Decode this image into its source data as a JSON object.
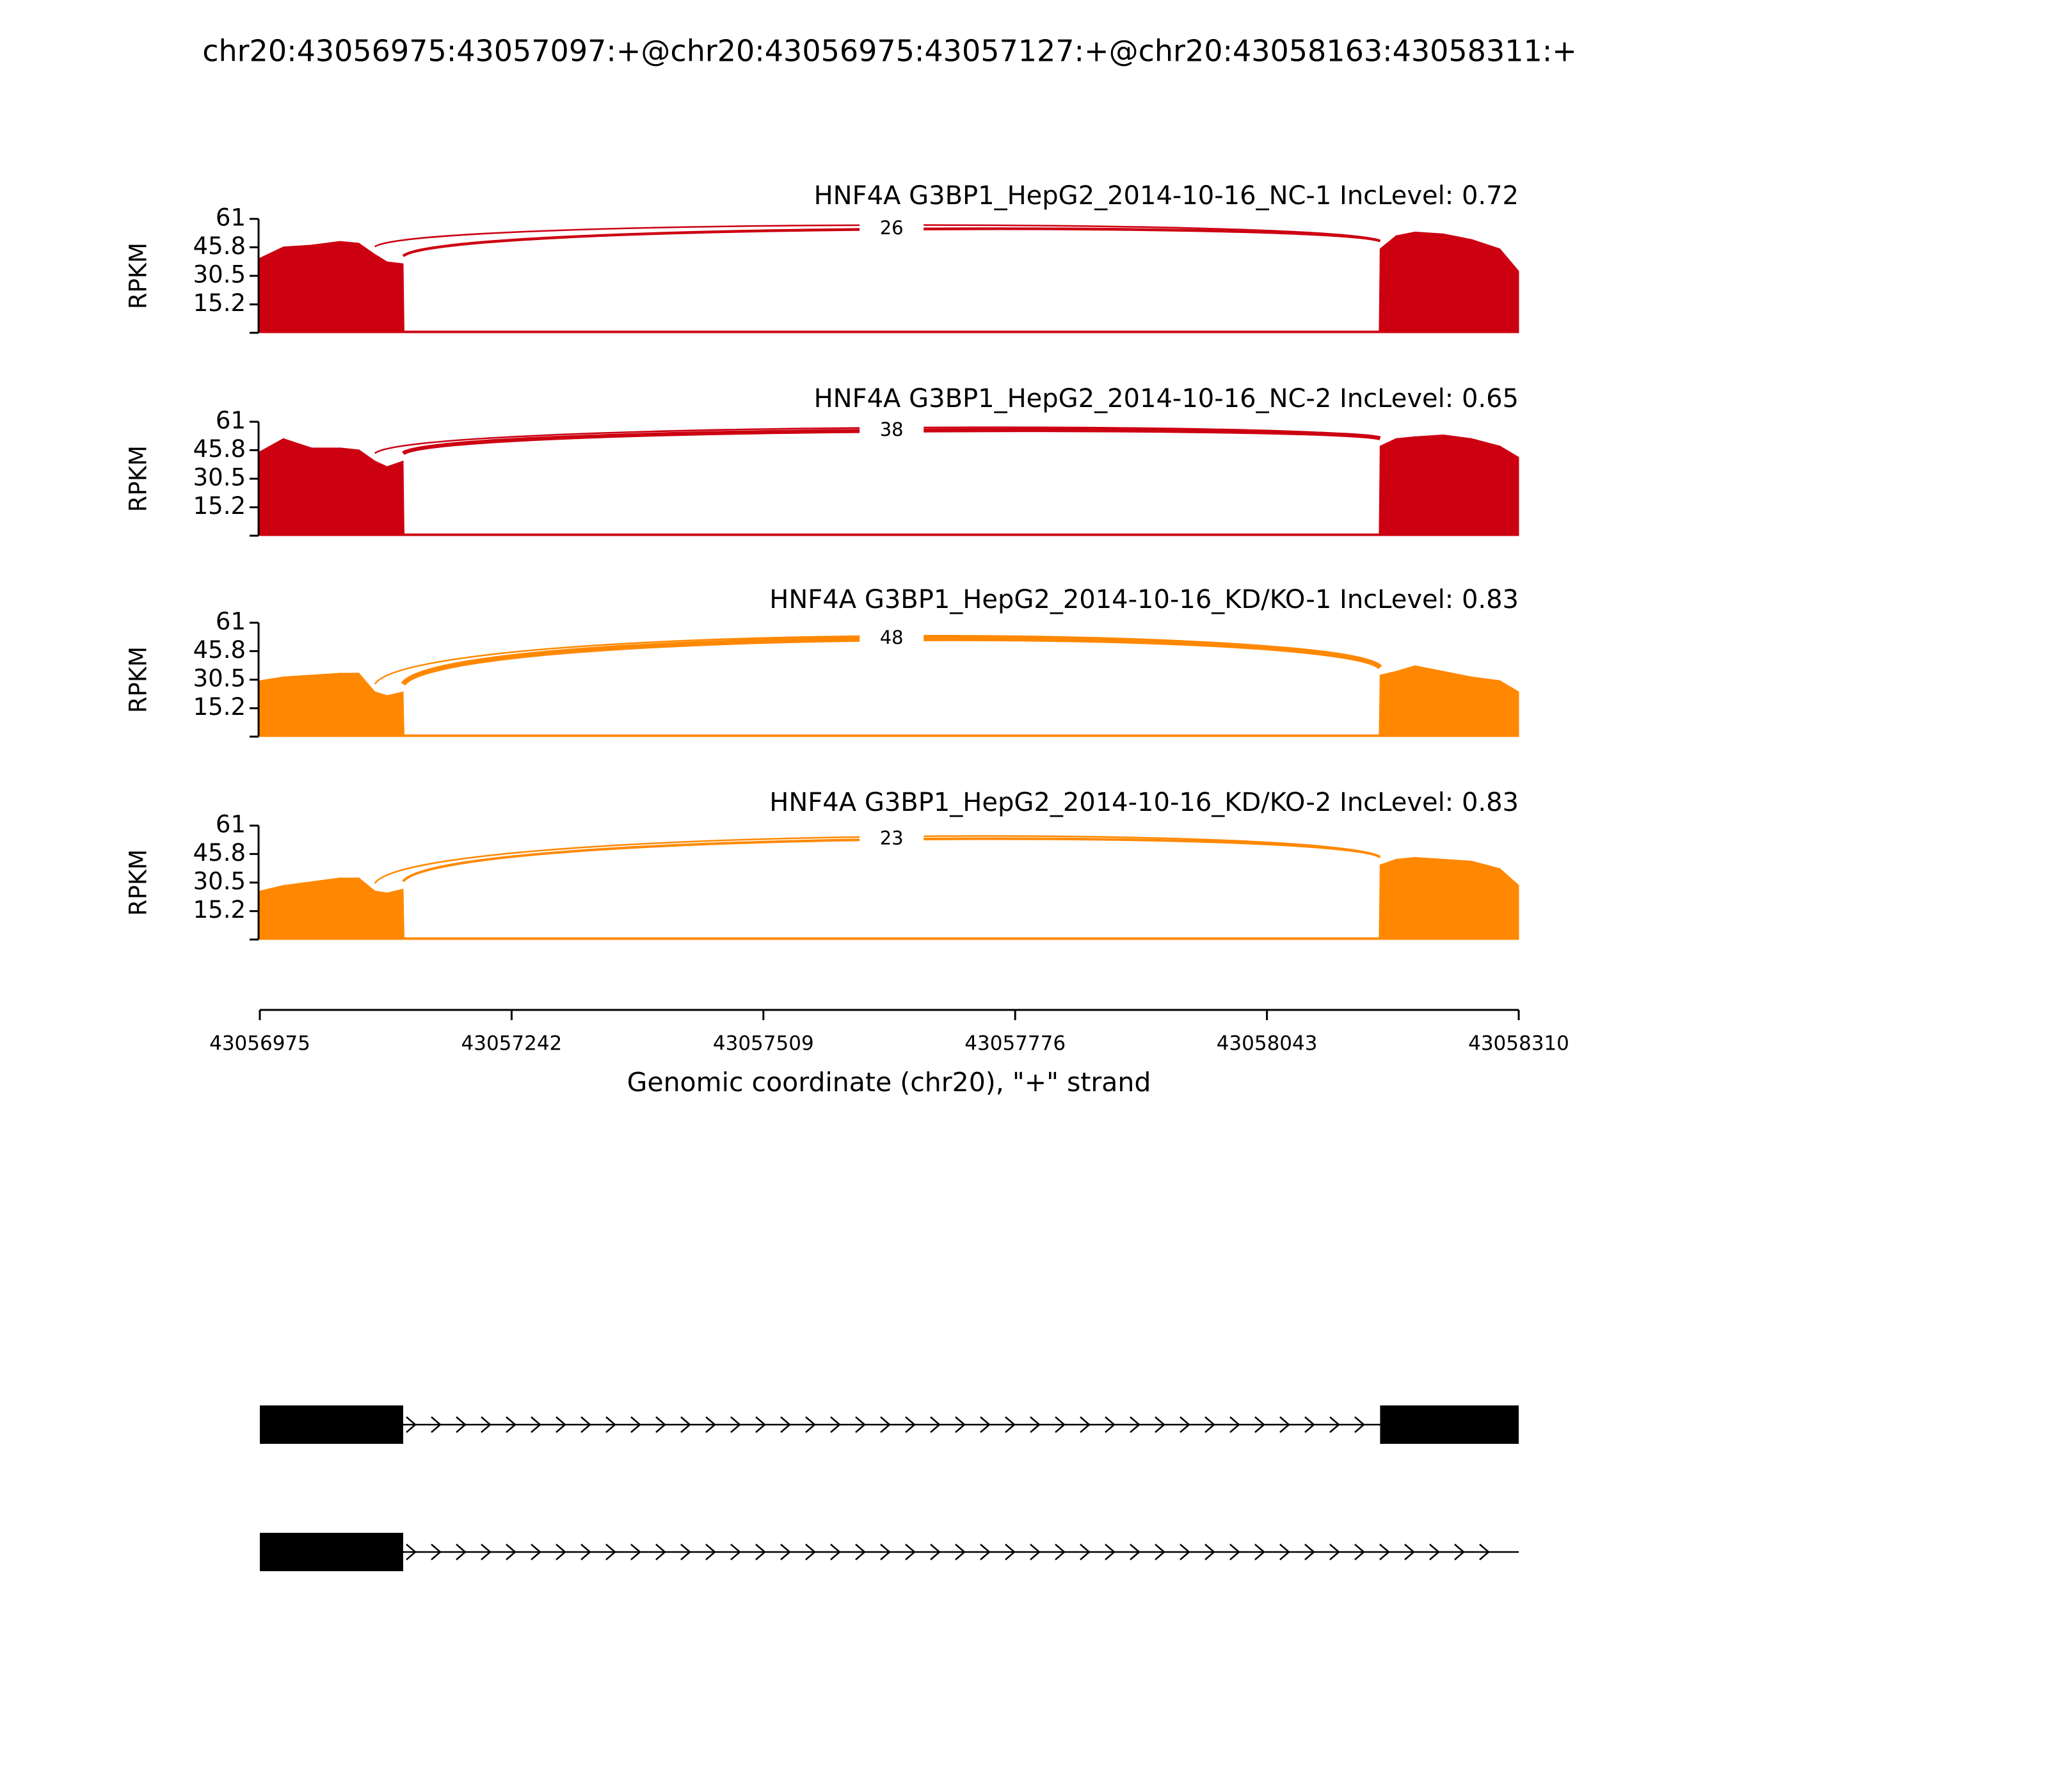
{
  "title": "chr20:43056975:43057097:+@chr20:43056975:43057127:+@chr20:43058163:43058311:+",
  "xlabel": "Genomic coordinate (chr20), \"+\" strand",
  "xlim": [
    43056975,
    43058310
  ],
  "xticks": [
    43056975,
    43057242,
    43057509,
    43057776,
    43058043,
    43058310
  ],
  "chart_data": [
    {
      "type": "area",
      "title": "HNF4A G3BP1_HepG2_2014-10-16_NC-1 IncLevel: 0.72",
      "color": "#cc0011",
      "ylabel": "RPKM",
      "ylim": [
        0,
        61
      ],
      "yticks": [
        15.2,
        30.5,
        45.8,
        61
      ],
      "x": [
        43056975,
        43057000,
        43057030,
        43057060,
        43057080,
        43057097,
        43057110,
        43057127,
        43057128,
        43058162,
        43058163,
        43058180,
        43058200,
        43058230,
        43058260,
        43058290,
        43058310
      ],
      "values": [
        40,
        46,
        47,
        49,
        48,
        42,
        38,
        37,
        1,
        1,
        45,
        52,
        54,
        53,
        50,
        45,
        33
      ],
      "junctions": [
        {
          "start": 43057097,
          "end": 43058163
        },
        {
          "start": 43057127,
          "end": 43058163,
          "count": 26
        }
      ]
    },
    {
      "type": "area",
      "title": "HNF4A G3BP1_HepG2_2014-10-16_NC-2 IncLevel: 0.65",
      "color": "#cc0011",
      "ylabel": "RPKM",
      "ylim": [
        0,
        61
      ],
      "yticks": [
        15.2,
        30.5,
        45.8,
        61
      ],
      "x": [
        43056975,
        43057000,
        43057030,
        43057060,
        43057080,
        43057097,
        43057110,
        43057127,
        43057128,
        43058162,
        43058163,
        43058180,
        43058200,
        43058230,
        43058260,
        43058290,
        43058310
      ],
      "values": [
        45,
        52,
        47,
        47,
        46,
        40,
        37,
        40,
        1,
        1,
        48,
        52,
        53,
        54,
        52,
        48,
        42
      ],
      "junctions": [
        {
          "start": 43057097,
          "end": 43058163
        },
        {
          "start": 43057127,
          "end": 43058163,
          "count": 38
        }
      ]
    },
    {
      "type": "area",
      "title": "HNF4A G3BP1_HepG2_2014-10-16_KD/KO-1 IncLevel: 0.83",
      "color": "#ff8800",
      "ylabel": "RPKM",
      "ylim": [
        0,
        61
      ],
      "yticks": [
        15.2,
        30.5,
        45.8,
        61
      ],
      "x": [
        43056975,
        43057000,
        43057030,
        43057060,
        43057080,
        43057097,
        43057110,
        43057127,
        43057128,
        43058162,
        43058163,
        43058180,
        43058200,
        43058230,
        43058260,
        43058290,
        43058310
      ],
      "values": [
        30,
        32,
        33,
        34,
        34,
        24,
        22,
        24,
        1,
        1,
        33,
        35,
        38,
        35,
        32,
        30,
        24
      ],
      "junctions": [
        {
          "start": 43057097,
          "end": 43058163
        },
        {
          "start": 43057127,
          "end": 43058163,
          "count": 48
        }
      ]
    },
    {
      "type": "area",
      "title": "HNF4A G3BP1_HepG2_2014-10-16_KD/KO-2 IncLevel: 0.83",
      "color": "#ff8800",
      "ylabel": "RPKM",
      "ylim": [
        0,
        61
      ],
      "yticks": [
        15.2,
        30.5,
        45.8,
        61
      ],
      "x": [
        43056975,
        43057000,
        43057030,
        43057060,
        43057080,
        43057097,
        43057110,
        43057127,
        43057128,
        43058162,
        43058163,
        43058180,
        43058200,
        43058230,
        43058260,
        43058290,
        43058310
      ],
      "values": [
        26,
        29,
        31,
        33,
        33,
        26,
        25,
        27,
        1,
        1,
        40,
        43,
        44,
        43,
        42,
        38,
        29
      ],
      "junctions": [
        {
          "start": 43057097,
          "end": 43058163
        },
        {
          "start": 43057127,
          "end": 43058163,
          "count": 23
        }
      ]
    }
  ],
  "gene_model": {
    "transcripts": [
      {
        "start": 43056975,
        "end": 43058310,
        "exons": [
          [
            43056975,
            43057127
          ],
          [
            43058163,
            43058310
          ]
        ]
      },
      {
        "start": 43056975,
        "end": 43058310,
        "exons": [
          [
            43056975,
            43057127
          ]
        ]
      }
    ]
  }
}
